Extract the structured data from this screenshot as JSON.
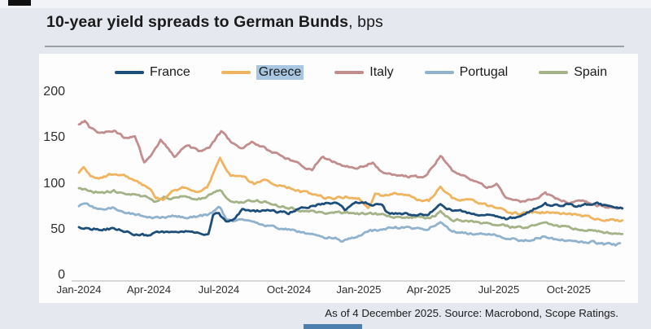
{
  "header": {
    "title_bold": "10-year yield spreads to German Bunds",
    "title_suffix": ", bps"
  },
  "footer": {
    "text": "As of 4 December 2025. Source: Macrobond, Scope Ratings."
  },
  "legend": {
    "highlight_color": "#a9c7e2",
    "items": [
      {
        "label": "France",
        "color": "#1d4e7a",
        "highlighted": false
      },
      {
        "label": "Greece",
        "color": "#f0b35e",
        "highlighted": true
      },
      {
        "label": "Italy",
        "color": "#c28e8d",
        "highlighted": false
      },
      {
        "label": "Portugal",
        "color": "#90b2cc",
        "highlighted": false
      },
      {
        "label": "Spain",
        "color": "#a4b386",
        "highlighted": false
      }
    ]
  },
  "chart_data": {
    "type": "line",
    "title": "10-year yield spreads to German Bunds",
    "ylabel": "bps",
    "ylim": [
      0,
      200
    ],
    "grid": false,
    "legend_position": "top",
    "x_unit": "months since Jan-2024",
    "y_ticks": [
      200,
      150,
      100,
      50,
      0
    ],
    "x_ticks": [
      {
        "t": 0,
        "label": "Jan-2024"
      },
      {
        "t": 3,
        "label": "Apr-2024"
      },
      {
        "t": 6,
        "label": "Jul-2024"
      },
      {
        "t": 9,
        "label": "Oct-2024"
      },
      {
        "t": 12,
        "label": "Jan-2025"
      },
      {
        "t": 15,
        "label": "Apr-2025"
      },
      {
        "t": 18,
        "label": "Jul-2025"
      },
      {
        "t": 21,
        "label": "Oct-2025"
      }
    ],
    "series": [
      {
        "name": "France",
        "color": "#1d4e7a",
        "points": [
          [
            0,
            52
          ],
          [
            0.5,
            51
          ],
          [
            1,
            50
          ],
          [
            1.5,
            51
          ],
          [
            2,
            48
          ],
          [
            2.3,
            45
          ],
          [
            2.6,
            43
          ],
          [
            3,
            44
          ],
          [
            3.5,
            47
          ],
          [
            4,
            47
          ],
          [
            4.5,
            48
          ],
          [
            5,
            46
          ],
          [
            5.3,
            44
          ],
          [
            5.55,
            45
          ],
          [
            5.75,
            66
          ],
          [
            6,
            67
          ],
          [
            6.3,
            59
          ],
          [
            6.7,
            63
          ],
          [
            7,
            72
          ],
          [
            7.5,
            70
          ],
          [
            8,
            71
          ],
          [
            8.5,
            69
          ],
          [
            9,
            68
          ],
          [
            9.4,
            72
          ],
          [
            9.7,
            74
          ],
          [
            10,
            76
          ],
          [
            10.5,
            78
          ],
          [
            11,
            80
          ],
          [
            11.4,
            71
          ],
          [
            11.8,
            79
          ],
          [
            12,
            80
          ],
          [
            12.5,
            78
          ],
          [
            13,
            76
          ],
          [
            13.2,
            68
          ],
          [
            13.5,
            67
          ],
          [
            14,
            67
          ],
          [
            14.5,
            66
          ],
          [
            15,
            67
          ],
          [
            15.5,
            77
          ],
          [
            16,
            71
          ],
          [
            16.5,
            69
          ],
          [
            17,
            67
          ],
          [
            17.5,
            66
          ],
          [
            18,
            65
          ],
          [
            18.3,
            62
          ],
          [
            18.7,
            63
          ],
          [
            19,
            65
          ],
          [
            19.5,
            72
          ],
          [
            20,
            78
          ],
          [
            20.3,
            75
          ],
          [
            20.7,
            77
          ],
          [
            21,
            78
          ],
          [
            21.3,
            75
          ],
          [
            21.7,
            77
          ],
          [
            22,
            77
          ],
          [
            22.3,
            78
          ],
          [
            22.7,
            75
          ],
          [
            23,
            74
          ],
          [
            23.3,
            73
          ]
        ]
      },
      {
        "name": "Greece",
        "color": "#f0b35e",
        "points": [
          [
            0,
            112
          ],
          [
            0.2,
            118
          ],
          [
            0.5,
            108
          ],
          [
            1,
            106
          ],
          [
            1.3,
            110
          ],
          [
            2,
            108
          ],
          [
            2.5,
            102
          ],
          [
            3,
            95
          ],
          [
            3.3,
            85
          ],
          [
            3.6,
            82
          ],
          [
            4,
            92
          ],
          [
            4.5,
            96
          ],
          [
            5,
            90
          ],
          [
            5.5,
            96
          ],
          [
            6.05,
            127
          ],
          [
            6.5,
            108
          ],
          [
            7,
            108
          ],
          [
            7.5,
            100
          ],
          [
            8,
            105
          ],
          [
            8.5,
            98
          ],
          [
            9,
            96
          ],
          [
            9.5,
            91
          ],
          [
            10,
            89
          ],
          [
            10.5,
            85
          ],
          [
            11,
            84
          ],
          [
            11.5,
            86
          ],
          [
            12,
            83
          ],
          [
            12.4,
            72
          ],
          [
            12.7,
            88
          ],
          [
            13,
            87
          ],
          [
            13.5,
            90
          ],
          [
            14,
            88
          ],
          [
            14.5,
            83
          ],
          [
            15,
            81
          ],
          [
            15.5,
            96
          ],
          [
            16,
            84
          ],
          [
            16.5,
            82
          ],
          [
            17,
            80
          ],
          [
            17.5,
            76
          ],
          [
            18,
            74
          ],
          [
            18.5,
            68
          ],
          [
            19,
            67
          ],
          [
            19.5,
            69
          ],
          [
            20,
            69
          ],
          [
            20.5,
            67
          ],
          [
            21,
            67
          ],
          [
            21.5,
            65
          ],
          [
            22,
            63
          ],
          [
            22.5,
            61
          ],
          [
            23,
            60
          ],
          [
            23.3,
            60
          ]
        ]
      },
      {
        "name": "Italy",
        "color": "#c28e8d",
        "points": [
          [
            0,
            165
          ],
          [
            0.25,
            168
          ],
          [
            0.5,
            160
          ],
          [
            1,
            155
          ],
          [
            1.5,
            157
          ],
          [
            2,
            150
          ],
          [
            2.4,
            152
          ],
          [
            2.8,
            123
          ],
          [
            3,
            128
          ],
          [
            3.5,
            147
          ],
          [
            4.1,
            130
          ],
          [
            4.6,
            142
          ],
          [
            5.2,
            135
          ],
          [
            5.6,
            140
          ],
          [
            6.1,
            157
          ],
          [
            6.5,
            146
          ],
          [
            7,
            139
          ],
          [
            7.4,
            145
          ],
          [
            8,
            138
          ],
          [
            8.5,
            132
          ],
          [
            9,
            127
          ],
          [
            9.7,
            118
          ],
          [
            10,
            115
          ],
          [
            10.4,
            130
          ],
          [
            11,
            123
          ],
          [
            11.5,
            119
          ],
          [
            12,
            117
          ],
          [
            12.6,
            123
          ],
          [
            13,
            112
          ],
          [
            13.5,
            110
          ],
          [
            14,
            108
          ],
          [
            14.8,
            107
          ],
          [
            15.5,
            130
          ],
          [
            15.8,
            122
          ],
          [
            16,
            115
          ],
          [
            16.5,
            108
          ],
          [
            17,
            102
          ],
          [
            17.5,
            96
          ],
          [
            17.9,
            99
          ],
          [
            18.3,
            85
          ],
          [
            19,
            80
          ],
          [
            19.5,
            83
          ],
          [
            20,
            89
          ],
          [
            20.5,
            83
          ],
          [
            21,
            80
          ],
          [
            21.4,
            83
          ],
          [
            22,
            77
          ],
          [
            22.5,
            75
          ],
          [
            23,
            74
          ],
          [
            23.3,
            73
          ]
        ]
      },
      {
        "name": "Portugal",
        "color": "#90b2cc",
        "points": [
          [
            0,
            76
          ],
          [
            0.3,
            78
          ],
          [
            0.7,
            73
          ],
          [
            1,
            72
          ],
          [
            1.5,
            74
          ],
          [
            2,
            68
          ],
          [
            2.5,
            66
          ],
          [
            3,
            63
          ],
          [
            3.5,
            62
          ],
          [
            4,
            65
          ],
          [
            4.5,
            63
          ],
          [
            5,
            64
          ],
          [
            5.5,
            66
          ],
          [
            6.05,
            74
          ],
          [
            6.3,
            62
          ],
          [
            6.6,
            59
          ],
          [
            7,
            60
          ],
          [
            7.5,
            58
          ],
          [
            8,
            55
          ],
          [
            8.5,
            52
          ],
          [
            9,
            50
          ],
          [
            9.5,
            47
          ],
          [
            10,
            45
          ],
          [
            10.5,
            42
          ],
          [
            11,
            41
          ],
          [
            11.3,
            37
          ],
          [
            11.7,
            40
          ],
          [
            12,
            44
          ],
          [
            12.5,
            49
          ],
          [
            13,
            49
          ],
          [
            13.5,
            52
          ],
          [
            14,
            52
          ],
          [
            14.5,
            51
          ],
          [
            15,
            51
          ],
          [
            15.5,
            59
          ],
          [
            16,
            47
          ],
          [
            16.5,
            46
          ],
          [
            17,
            45
          ],
          [
            17.5,
            44
          ],
          [
            18,
            43
          ],
          [
            18.5,
            40
          ],
          [
            19,
            38
          ],
          [
            19.5,
            40
          ],
          [
            20,
            43
          ],
          [
            20.5,
            39
          ],
          [
            21,
            38
          ],
          [
            21.5,
            36
          ],
          [
            22,
            36
          ],
          [
            22.5,
            34
          ],
          [
            23,
            33
          ],
          [
            23.2,
            35
          ]
        ]
      },
      {
        "name": "Spain",
        "color": "#a4b386",
        "points": [
          [
            0,
            95
          ],
          [
            0.5,
            92
          ],
          [
            1,
            90
          ],
          [
            1.5,
            92
          ],
          [
            2,
            88
          ],
          [
            2.5,
            89
          ],
          [
            3,
            84
          ],
          [
            3.3,
            80
          ],
          [
            3.7,
            86
          ],
          [
            4,
            84
          ],
          [
            4.5,
            87
          ],
          [
            5,
            82
          ],
          [
            5.5,
            86
          ],
          [
            6.05,
            93
          ],
          [
            6.4,
            83
          ],
          [
            7,
            79
          ],
          [
            7.5,
            82
          ],
          [
            8,
            80
          ],
          [
            8.5,
            76
          ],
          [
            9,
            74
          ],
          [
            9.5,
            71
          ],
          [
            10,
            70
          ],
          [
            10.5,
            68
          ],
          [
            11,
            68
          ],
          [
            11.5,
            69
          ],
          [
            12,
            67
          ],
          [
            12.5,
            68
          ],
          [
            13,
            66
          ],
          [
            13.5,
            64
          ],
          [
            14,
            63
          ],
          [
            14.5,
            64
          ],
          [
            15,
            62
          ],
          [
            15.5,
            69
          ],
          [
            16,
            61
          ],
          [
            16.5,
            60
          ],
          [
            17,
            58
          ],
          [
            17.5,
            56
          ],
          [
            18,
            56
          ],
          [
            18.5,
            53
          ],
          [
            19,
            52
          ],
          [
            19.5,
            54
          ],
          [
            20,
            57
          ],
          [
            20.5,
            54
          ],
          [
            21,
            52
          ],
          [
            21.5,
            50
          ],
          [
            22,
            49
          ],
          [
            22.5,
            47
          ],
          [
            23,
            45
          ],
          [
            23.3,
            45
          ]
        ]
      }
    ]
  }
}
